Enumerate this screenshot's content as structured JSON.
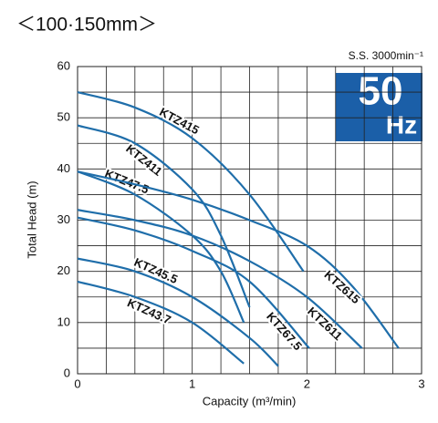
{
  "chart_data": {
    "type": "line",
    "title": "＜100·150mm＞",
    "subtitle": "S.S. 3000min⁻¹",
    "badge": {
      "value": "50",
      "unit": "Hz"
    },
    "badge_color": "#1b5fa8",
    "x_label": "Capacity (m³/min)",
    "y_label": "Total Head (m)",
    "xlim": [
      0,
      3
    ],
    "xticks": [
      0,
      1,
      2,
      3
    ],
    "ylim": [
      0,
      60
    ],
    "yticks": [
      0,
      10,
      20,
      30,
      40,
      50,
      60
    ],
    "grid": true,
    "series": [
      {
        "name": "KTZ415",
        "color": "#1f6eaa",
        "x": [
          0,
          0.5,
          1,
          1.5,
          1.97
        ],
        "values": [
          55,
          52,
          46,
          35,
          20
        ]
      },
      {
        "name": "KTZ411",
        "color": "#1f6eaa",
        "x": [
          0,
          0.5,
          1,
          1.25,
          1.5
        ],
        "values": [
          48.5,
          45,
          36,
          27,
          13
        ]
      },
      {
        "name": "KTZ47.5",
        "color": "#1f6eaa",
        "x": [
          0,
          0.5,
          1,
          1.25,
          1.45
        ],
        "values": [
          39.5,
          35,
          27,
          20,
          10
        ]
      },
      {
        "name": "KTZ615",
        "color": "#1f6eaa",
        "x": [
          0,
          0.5,
          1,
          1.5,
          2,
          2.4,
          2.8
        ],
        "values": [
          39.5,
          37,
          34,
          30,
          25,
          17,
          5
        ]
      },
      {
        "name": "KTZ611",
        "color": "#1f6eaa",
        "x": [
          0,
          0.5,
          1,
          1.5,
          2,
          2.48
        ],
        "values": [
          32,
          30,
          27,
          22,
          15,
          5
        ]
      },
      {
        "name": "KTZ67.5",
        "color": "#1f6eaa",
        "x": [
          0,
          0.5,
          1,
          1.5,
          2.02
        ],
        "values": [
          30.5,
          28,
          24,
          18,
          5
        ]
      },
      {
        "name": "KTZ45.5",
        "color": "#1f6eaa",
        "x": [
          0,
          0.5,
          1,
          1.5,
          1.75
        ],
        "values": [
          22.5,
          20,
          15,
          7,
          1.5
        ]
      },
      {
        "name": "KTZ43.7",
        "color": "#1f6eaa",
        "x": [
          0,
          0.5,
          1,
          1.45
        ],
        "values": [
          18,
          15,
          10,
          2
        ]
      }
    ]
  }
}
